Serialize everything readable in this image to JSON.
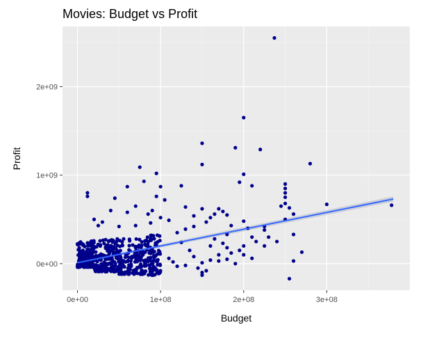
{
  "colors": {
    "panel": "#ebebeb",
    "grid_major": "#ffffff",
    "grid_minor": "#f5f5f5",
    "point": "#00008b",
    "trend": "#3366ff",
    "band": "#b0b8c8",
    "tick": "#333333"
  },
  "chart_data": {
    "type": "scatter",
    "title": "Movies: Budget vs Profit",
    "xlabel": "Budget",
    "ylabel": "Profit",
    "xlim": [
      -18000000,
      400000000
    ],
    "ylim": [
      -300000000,
      2680000000
    ],
    "grid": true,
    "x_ticks": [
      {
        "value": 0,
        "label": "0e+00"
      },
      {
        "value": 100000000,
        "label": "1e+08"
      },
      {
        "value": 200000000,
        "label": "2e+08"
      },
      {
        "value": 300000000,
        "label": "3e+08"
      }
    ],
    "y_ticks": [
      {
        "value": 0,
        "label": "0e+00"
      },
      {
        "value": 1000000000,
        "label": "1e+09"
      },
      {
        "value": 2000000000,
        "label": "2e+09"
      }
    ],
    "trend_line": {
      "method": "linear",
      "from": [
        0,
        10000000
      ],
      "to": [
        380000000,
        730000000
      ],
      "band": 15000000
    },
    "points": [
      [
        237000000,
        2550000000
      ],
      [
        200000000,
        1650000000
      ],
      [
        150000000,
        1360000000
      ],
      [
        190000000,
        1310000000
      ],
      [
        220000000,
        1290000000
      ],
      [
        280000000,
        1130000000
      ],
      [
        150000000,
        1120000000
      ],
      [
        75000000,
        1090000000
      ],
      [
        95000000,
        1020000000
      ],
      [
        200000000,
        1010000000
      ],
      [
        195000000,
        920000000
      ],
      [
        210000000,
        880000000
      ],
      [
        250000000,
        900000000
      ],
      [
        250000000,
        850000000
      ],
      [
        80000000,
        930000000
      ],
      [
        60000000,
        870000000
      ],
      [
        100000000,
        870000000
      ],
      [
        125000000,
        880000000
      ],
      [
        250000000,
        800000000
      ],
      [
        250000000,
        750000000
      ],
      [
        250000000,
        680000000
      ],
      [
        245000000,
        650000000
      ],
      [
        255000000,
        630000000
      ],
      [
        300000000,
        670000000
      ],
      [
        378000000,
        660000000
      ],
      [
        260000000,
        560000000
      ],
      [
        250000000,
        500000000
      ],
      [
        225000000,
        420000000
      ],
      [
        225000000,
        380000000
      ],
      [
        260000000,
        330000000
      ],
      [
        225000000,
        200000000
      ],
      [
        270000000,
        130000000
      ],
      [
        260000000,
        30000000
      ],
      [
        255000000,
        -170000000
      ],
      [
        12000000,
        800000000
      ],
      [
        12000000,
        760000000
      ],
      [
        45000000,
        740000000
      ],
      [
        70000000,
        650000000
      ],
      [
        95000000,
        760000000
      ],
      [
        105000000,
        720000000
      ],
      [
        130000000,
        640000000
      ],
      [
        150000000,
        620000000
      ],
      [
        170000000,
        620000000
      ],
      [
        175000000,
        590000000
      ],
      [
        180000000,
        550000000
      ],
      [
        165000000,
        560000000
      ],
      [
        155000000,
        470000000
      ],
      [
        140000000,
        420000000
      ],
      [
        130000000,
        390000000
      ],
      [
        120000000,
        350000000
      ],
      [
        185000000,
        430000000
      ],
      [
        200000000,
        480000000
      ],
      [
        205000000,
        400000000
      ],
      [
        210000000,
        300000000
      ],
      [
        215000000,
        250000000
      ],
      [
        200000000,
        200000000
      ],
      [
        195000000,
        150000000
      ],
      [
        200000000,
        100000000
      ],
      [
        190000000,
        0
      ],
      [
        180000000,
        50000000
      ],
      [
        170000000,
        100000000
      ],
      [
        160000000,
        200000000
      ],
      [
        150000000,
        -100000000
      ],
      [
        150000000,
        -130000000
      ],
      [
        145000000,
        -50000000
      ],
      [
        155000000,
        -80000000
      ],
      [
        130000000,
        -20000000
      ],
      [
        120000000,
        -30000000
      ],
      [
        115000000,
        20000000
      ],
      [
        110000000,
        60000000
      ],
      [
        135000000,
        150000000
      ],
      [
        125000000,
        240000000
      ],
      [
        90000000,
        600000000
      ],
      [
        85000000,
        560000000
      ],
      [
        60000000,
        580000000
      ],
      [
        40000000,
        600000000
      ],
      [
        30000000,
        470000000
      ],
      [
        20000000,
        500000000
      ],
      [
        25000000,
        430000000
      ],
      [
        50000000,
        420000000
      ],
      [
        70000000,
        430000000
      ],
      [
        88000000,
        460000000
      ],
      [
        100000000,
        520000000
      ],
      [
        110000000,
        490000000
      ],
      [
        140000000,
        540000000
      ],
      [
        160000000,
        520000000
      ],
      [
        180000000,
        330000000
      ],
      [
        165000000,
        280000000
      ],
      [
        175000000,
        230000000
      ],
      [
        180000000,
        180000000
      ],
      [
        185000000,
        120000000
      ],
      [
        140000000,
        80000000
      ],
      [
        160000000,
        40000000
      ],
      [
        150000000,
        10000000
      ],
      [
        170000000,
        30000000
      ],
      [
        210000000,
        60000000
      ],
      [
        230000000,
        300000000
      ],
      [
        240000000,
        250000000
      ]
    ],
    "dense_region": [
      {
        "x": [
          0,
          20000000
        ],
        "y": [
          -40000000,
          260000000
        ],
        "count": 190
      },
      {
        "x": [
          20000000,
          50000000
        ],
        "y": [
          -90000000,
          280000000
        ],
        "count": 180
      },
      {
        "x": [
          50000000,
          80000000
        ],
        "y": [
          -120000000,
          300000000
        ],
        "count": 140
      },
      {
        "x": [
          80000000,
          100000000
        ],
        "y": [
          -130000000,
          330000000
        ],
        "count": 100
      }
    ]
  }
}
